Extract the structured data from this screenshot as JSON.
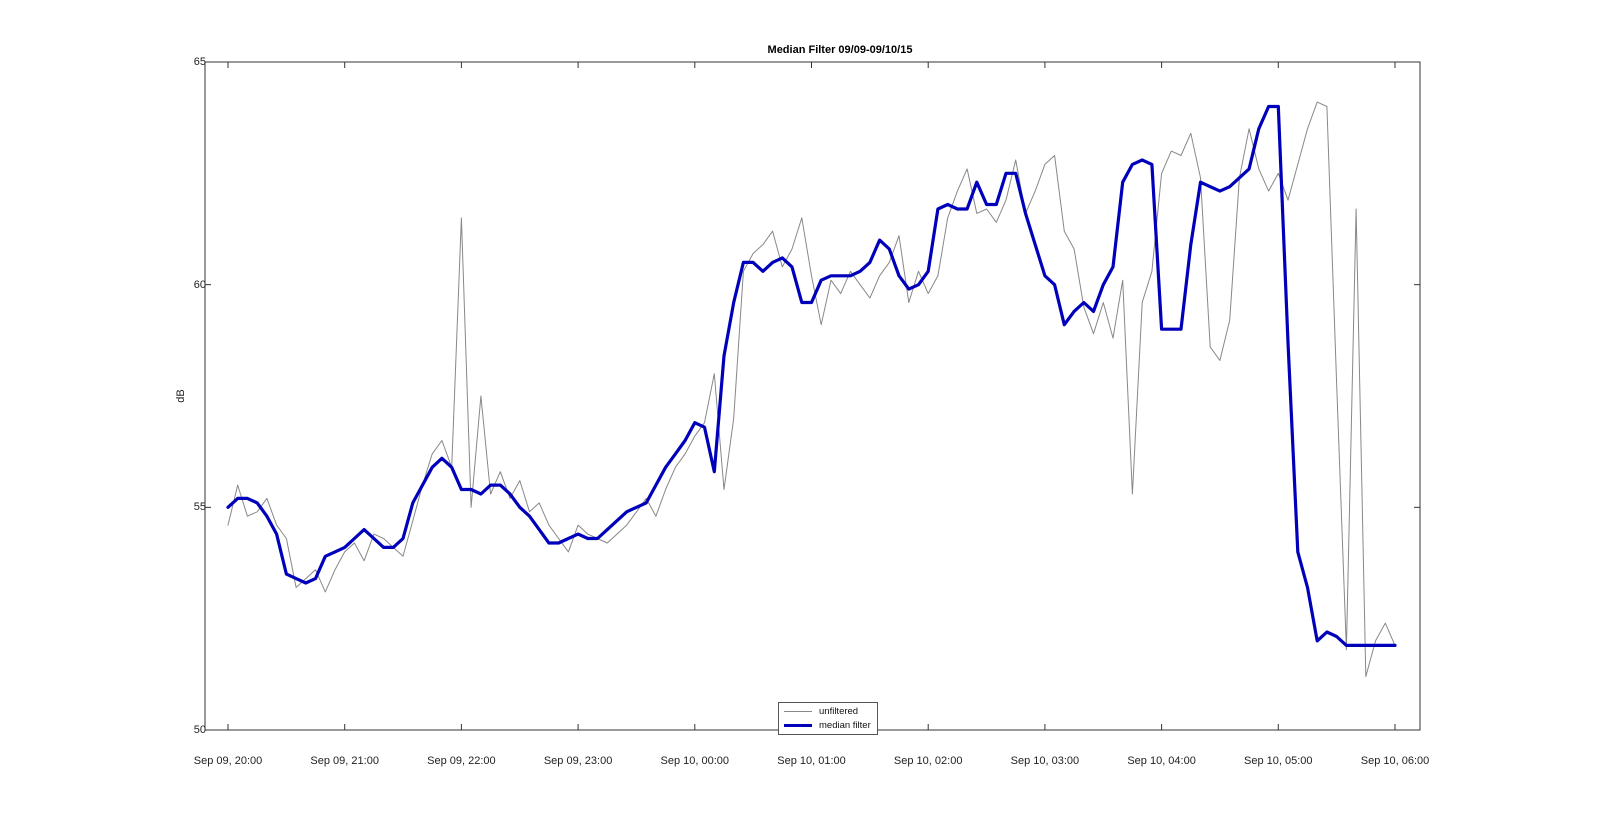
{
  "chart_data": {
    "type": "line",
    "title": "Median Filter 09/09-09/10/15",
    "xlabel": "",
    "ylabel": "dB",
    "ylim": [
      50,
      65
    ],
    "yticks": [
      50,
      55,
      60,
      65
    ],
    "xlim": [
      "2015-09-09 20:00",
      "2015-09-10 06:00"
    ],
    "xticks": [
      {
        "time": "2015-09-09 20:00",
        "label": "Sep 09, 20:00"
      },
      {
        "time": "2015-09-09 21:00",
        "label": "Sep 09, 21:00"
      },
      {
        "time": "2015-09-09 22:00",
        "label": "Sep 09, 22:00"
      },
      {
        "time": "2015-09-09 23:00",
        "label": "Sep 09, 23:00"
      },
      {
        "time": "2015-09-10 00:00",
        "label": "Sep 10, 00:00"
      },
      {
        "time": "2015-09-10 01:00",
        "label": "Sep 10, 01:00"
      },
      {
        "time": "2015-09-10 02:00",
        "label": "Sep 10, 02:00"
      },
      {
        "time": "2015-09-10 03:00",
        "label": "Sep 10, 03:00"
      },
      {
        "time": "2015-09-10 04:00",
        "label": "Sep 10, 04:00"
      },
      {
        "time": "2015-09-10 05:00",
        "label": "Sep 10, 05:00"
      },
      {
        "time": "2015-09-10 06:00",
        "label": "Sep 10, 06:00"
      }
    ],
    "grid": false,
    "legend_position": "bottom-center",
    "series": [
      {
        "name": "unfiltered",
        "color": "#888888",
        "x": [
          "2015-09-09 20:00",
          "2015-09-09 20:05",
          "2015-09-09 20:10",
          "2015-09-09 20:15",
          "2015-09-09 20:20",
          "2015-09-09 20:25",
          "2015-09-09 20:30",
          "2015-09-09 20:35",
          "2015-09-09 20:40",
          "2015-09-09 20:45",
          "2015-09-09 20:50",
          "2015-09-09 20:55",
          "2015-09-09 21:00",
          "2015-09-09 21:05",
          "2015-09-09 21:10",
          "2015-09-09 21:15",
          "2015-09-09 21:20",
          "2015-09-09 21:25",
          "2015-09-09 21:30",
          "2015-09-09 21:35",
          "2015-09-09 21:40",
          "2015-09-09 21:45",
          "2015-09-09 21:50",
          "2015-09-09 21:55",
          "2015-09-09 22:00",
          "2015-09-09 22:05",
          "2015-09-09 22:10",
          "2015-09-09 22:15",
          "2015-09-09 22:20",
          "2015-09-09 22:25",
          "2015-09-09 22:30",
          "2015-09-09 22:35",
          "2015-09-09 22:40",
          "2015-09-09 22:45",
          "2015-09-09 22:50",
          "2015-09-09 22:55",
          "2015-09-09 23:00",
          "2015-09-09 23:05",
          "2015-09-09 23:10",
          "2015-09-09 23:15",
          "2015-09-09 23:20",
          "2015-09-09 23:25",
          "2015-09-09 23:30",
          "2015-09-09 23:35",
          "2015-09-09 23:40",
          "2015-09-09 23:45",
          "2015-09-09 23:50",
          "2015-09-09 23:55",
          "2015-09-10 00:00",
          "2015-09-10 00:05",
          "2015-09-10 00:10",
          "2015-09-10 00:15",
          "2015-09-10 00:20",
          "2015-09-10 00:25",
          "2015-09-10 00:30",
          "2015-09-10 00:35",
          "2015-09-10 00:40",
          "2015-09-10 00:45",
          "2015-09-10 00:50",
          "2015-09-10 00:55",
          "2015-09-10 01:00",
          "2015-09-10 01:05",
          "2015-09-10 01:10",
          "2015-09-10 01:15",
          "2015-09-10 01:20",
          "2015-09-10 01:25",
          "2015-09-10 01:30",
          "2015-09-10 01:35",
          "2015-09-10 01:40",
          "2015-09-10 01:45",
          "2015-09-10 01:50",
          "2015-09-10 01:55",
          "2015-09-10 02:00",
          "2015-09-10 02:05",
          "2015-09-10 02:10",
          "2015-09-10 02:15",
          "2015-09-10 02:20",
          "2015-09-10 02:25",
          "2015-09-10 02:30",
          "2015-09-10 02:35",
          "2015-09-10 02:40",
          "2015-09-10 02:45",
          "2015-09-10 02:50",
          "2015-09-10 02:55",
          "2015-09-10 03:00",
          "2015-09-10 03:05",
          "2015-09-10 03:10",
          "2015-09-10 03:15",
          "2015-09-10 03:20",
          "2015-09-10 03:25",
          "2015-09-10 03:30",
          "2015-09-10 03:35",
          "2015-09-10 03:40",
          "2015-09-10 03:45",
          "2015-09-10 03:50",
          "2015-09-10 03:55",
          "2015-09-10 04:00",
          "2015-09-10 04:05",
          "2015-09-10 04:10",
          "2015-09-10 04:15",
          "2015-09-10 04:20",
          "2015-09-10 04:25",
          "2015-09-10 04:30",
          "2015-09-10 04:35",
          "2015-09-10 04:40",
          "2015-09-10 04:45",
          "2015-09-10 04:50",
          "2015-09-10 04:55",
          "2015-09-10 05:00",
          "2015-09-10 05:05",
          "2015-09-10 05:10",
          "2015-09-10 05:15",
          "2015-09-10 05:20",
          "2015-09-10 05:25",
          "2015-09-10 05:30",
          "2015-09-10 05:35",
          "2015-09-10 05:40",
          "2015-09-10 05:45",
          "2015-09-10 05:50",
          "2015-09-10 05:55",
          "2015-09-10 06:00"
        ],
        "values": [
          54.6,
          55.5,
          54.8,
          54.9,
          55.2,
          54.6,
          54.3,
          53.2,
          53.4,
          53.6,
          53.1,
          53.6,
          54.0,
          54.2,
          53.8,
          54.4,
          54.3,
          54.1,
          53.9,
          54.7,
          55.5,
          56.2,
          56.5,
          55.9,
          61.5,
          55.0,
          57.5,
          55.3,
          55.8,
          55.2,
          55.6,
          54.9,
          55.1,
          54.6,
          54.3,
          54.0,
          54.6,
          54.4,
          54.3,
          54.2,
          54.4,
          54.6,
          54.9,
          55.2,
          54.8,
          55.4,
          55.9,
          56.2,
          56.6,
          56.9,
          58.0,
          55.4,
          57.0,
          60.3,
          60.7,
          60.9,
          61.2,
          60.4,
          60.8,
          61.5,
          60.2,
          59.1,
          60.1,
          59.8,
          60.3,
          60.0,
          59.7,
          60.2,
          60.5,
          61.1,
          59.6,
          60.3,
          59.8,
          60.2,
          61.5,
          62.1,
          62.6,
          61.6,
          61.7,
          61.4,
          61.9,
          62.8,
          61.6,
          62.1,
          62.7,
          62.9,
          61.2,
          60.8,
          59.5,
          58.9,
          59.6,
          58.8,
          60.1,
          55.3,
          59.6,
          60.3,
          62.5,
          63.0,
          62.9,
          63.4,
          62.4,
          58.6,
          58.3,
          59.2,
          62.4,
          63.5,
          62.6,
          62.1,
          62.5,
          61.9,
          62.7,
          63.5,
          64.1,
          64.0,
          57.8,
          51.8,
          61.7,
          51.2,
          52.0,
          52.4,
          51.9
        ]
      },
      {
        "name": "median filter",
        "color": "#0000bb",
        "x": [
          "2015-09-09 20:00",
          "2015-09-09 20:05",
          "2015-09-09 20:10",
          "2015-09-09 20:15",
          "2015-09-09 20:20",
          "2015-09-09 20:25",
          "2015-09-09 20:30",
          "2015-09-09 20:35",
          "2015-09-09 20:40",
          "2015-09-09 20:45",
          "2015-09-09 20:50",
          "2015-09-09 20:55",
          "2015-09-09 21:00",
          "2015-09-09 21:05",
          "2015-09-09 21:10",
          "2015-09-09 21:15",
          "2015-09-09 21:20",
          "2015-09-09 21:25",
          "2015-09-09 21:30",
          "2015-09-09 21:35",
          "2015-09-09 21:40",
          "2015-09-09 21:45",
          "2015-09-09 21:50",
          "2015-09-09 21:55",
          "2015-09-09 22:00",
          "2015-09-09 22:05",
          "2015-09-09 22:10",
          "2015-09-09 22:15",
          "2015-09-09 22:20",
          "2015-09-09 22:25",
          "2015-09-09 22:30",
          "2015-09-09 22:35",
          "2015-09-09 22:40",
          "2015-09-09 22:45",
          "2015-09-09 22:50",
          "2015-09-09 22:55",
          "2015-09-09 23:00",
          "2015-09-09 23:05",
          "2015-09-09 23:10",
          "2015-09-09 23:15",
          "2015-09-09 23:20",
          "2015-09-09 23:25",
          "2015-09-09 23:30",
          "2015-09-09 23:35",
          "2015-09-09 23:40",
          "2015-09-09 23:45",
          "2015-09-09 23:50",
          "2015-09-09 23:55",
          "2015-09-10 00:00",
          "2015-09-10 00:05",
          "2015-09-10 00:10",
          "2015-09-10 00:15",
          "2015-09-10 00:20",
          "2015-09-10 00:25",
          "2015-09-10 00:30",
          "2015-09-10 00:35",
          "2015-09-10 00:40",
          "2015-09-10 00:45",
          "2015-09-10 00:50",
          "2015-09-10 00:55",
          "2015-09-10 01:00",
          "2015-09-10 01:05",
          "2015-09-10 01:10",
          "2015-09-10 01:15",
          "2015-09-10 01:20",
          "2015-09-10 01:25",
          "2015-09-10 01:30",
          "2015-09-10 01:35",
          "2015-09-10 01:40",
          "2015-09-10 01:45",
          "2015-09-10 01:50",
          "2015-09-10 01:55",
          "2015-09-10 02:00",
          "2015-09-10 02:05",
          "2015-09-10 02:10",
          "2015-09-10 02:15",
          "2015-09-10 02:20",
          "2015-09-10 02:25",
          "2015-09-10 02:30",
          "2015-09-10 02:35",
          "2015-09-10 02:40",
          "2015-09-10 02:45",
          "2015-09-10 02:50",
          "2015-09-10 02:55",
          "2015-09-10 03:00",
          "2015-09-10 03:05",
          "2015-09-10 03:10",
          "2015-09-10 03:15",
          "2015-09-10 03:20",
          "2015-09-10 03:25",
          "2015-09-10 03:30",
          "2015-09-10 03:35",
          "2015-09-10 03:40",
          "2015-09-10 03:45",
          "2015-09-10 03:50",
          "2015-09-10 03:55",
          "2015-09-10 04:00",
          "2015-09-10 04:05",
          "2015-09-10 04:10",
          "2015-09-10 04:15",
          "2015-09-10 04:20",
          "2015-09-10 04:25",
          "2015-09-10 04:30",
          "2015-09-10 04:35",
          "2015-09-10 04:40",
          "2015-09-10 04:45",
          "2015-09-10 04:50",
          "2015-09-10 04:55",
          "2015-09-10 05:00",
          "2015-09-10 05:05",
          "2015-09-10 05:10",
          "2015-09-10 05:15",
          "2015-09-10 05:20",
          "2015-09-10 05:25",
          "2015-09-10 05:30",
          "2015-09-10 05:35",
          "2015-09-10 05:40",
          "2015-09-10 05:45",
          "2015-09-10 05:50",
          "2015-09-10 05:55",
          "2015-09-10 06:00"
        ],
        "values": [
          55.0,
          55.2,
          55.2,
          55.1,
          54.8,
          54.4,
          53.5,
          53.4,
          53.3,
          53.4,
          53.9,
          54.0,
          54.1,
          54.3,
          54.5,
          54.3,
          54.1,
          54.1,
          54.3,
          55.1,
          55.5,
          55.9,
          56.1,
          55.9,
          55.4,
          55.4,
          55.3,
          55.5,
          55.5,
          55.3,
          55.0,
          54.8,
          54.5,
          54.2,
          54.2,
          54.3,
          54.4,
          54.3,
          54.3,
          54.5,
          54.7,
          54.9,
          55.0,
          55.1,
          55.5,
          55.9,
          56.2,
          56.5,
          56.9,
          56.8,
          55.8,
          58.4,
          59.6,
          60.5,
          60.5,
          60.3,
          60.5,
          60.6,
          60.4,
          59.6,
          59.6,
          60.1,
          60.2,
          60.2,
          60.2,
          60.3,
          60.5,
          61.0,
          60.8,
          60.2,
          59.9,
          60.0,
          60.3,
          61.7,
          61.8,
          61.7,
          61.7,
          62.3,
          61.8,
          61.8,
          62.5,
          62.5,
          61.6,
          60.9,
          60.2,
          60.0,
          59.1,
          59.4,
          59.6,
          59.4,
          60.0,
          60.4,
          62.3,
          62.7,
          62.8,
          62.7,
          59.0,
          59.0,
          59.0,
          60.9,
          62.3,
          62.2,
          62.1,
          62.2,
          62.4,
          62.6,
          63.5,
          64.0,
          64.0,
          58.7,
          54.0,
          53.2,
          52.0,
          52.2,
          52.1,
          51.9,
          51.9,
          51.9,
          51.9,
          51.9,
          51.9
        ]
      }
    ]
  }
}
